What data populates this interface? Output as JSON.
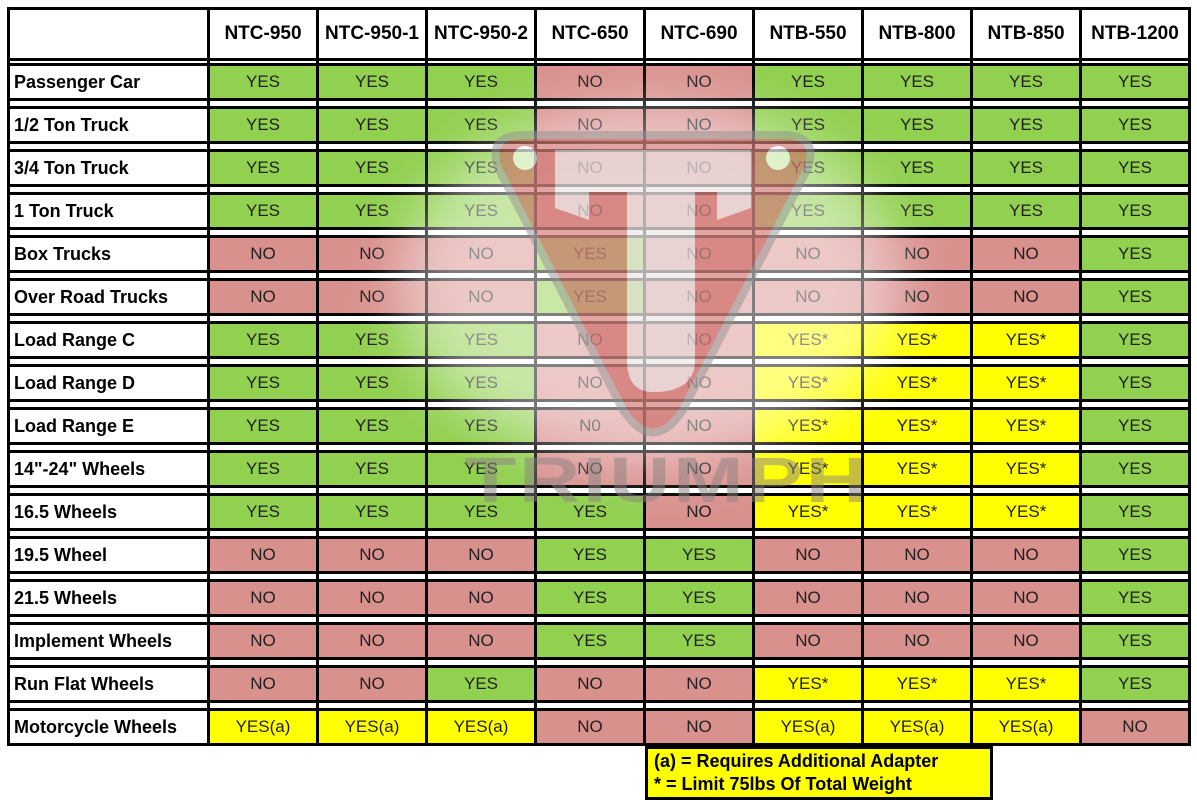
{
  "chart_data": {
    "type": "table",
    "title": "",
    "columns": [
      "NTC-950",
      "NTC-950-1",
      "NTC-950-2",
      "NTC-650",
      "NTC-690",
      "NTB-550",
      "NTB-800",
      "NTB-850",
      "NTB-1200"
    ],
    "rows": [
      {
        "label": "Passenger Car",
        "cells": [
          "YES",
          "YES",
          "YES",
          "NO",
          "NO",
          "YES",
          "YES",
          "YES",
          "YES"
        ]
      },
      {
        "label": "1/2 Ton Truck",
        "cells": [
          "YES",
          "YES",
          "YES",
          "NO",
          "NO",
          "YES",
          "YES",
          "YES",
          "YES"
        ]
      },
      {
        "label": "3/4 Ton Truck",
        "cells": [
          "YES",
          "YES",
          "YES",
          "NO",
          "NO",
          "YES",
          "YES",
          "YES",
          "YES"
        ]
      },
      {
        "label": "1 Ton Truck",
        "cells": [
          "YES",
          "YES",
          "YES",
          "NO",
          "NO",
          "YES",
          "YES",
          "YES",
          "YES"
        ]
      },
      {
        "label": "Box Trucks",
        "cells": [
          "NO",
          "NO",
          "NO",
          "YES",
          "NO",
          "NO",
          "NO",
          "NO",
          "YES"
        ]
      },
      {
        "label": "Over Road Trucks",
        "cells": [
          "NO",
          "NO",
          "NO",
          "YES",
          "NO",
          "NO",
          "NO",
          "NO",
          "YES"
        ]
      },
      {
        "label": "Load Range C",
        "cells": [
          "YES",
          "YES",
          "YES",
          "NO",
          "NO",
          "YES*",
          "YES*",
          "YES*",
          "YES"
        ]
      },
      {
        "label": "Load Range D",
        "cells": [
          "YES",
          "YES",
          "YES",
          "NO",
          "NO",
          "YES*",
          "YES*",
          "YES*",
          "YES"
        ]
      },
      {
        "label": "Load Range E",
        "cells": [
          "YES",
          "YES",
          "YES",
          "N0",
          "NO",
          "YES*",
          "YES*",
          "YES*",
          "YES"
        ]
      },
      {
        "label": "14\"-24\" Wheels",
        "cells": [
          "YES",
          "YES",
          "YES",
          "NO",
          "NO",
          "YES*",
          "YES*",
          "YES*",
          "YES"
        ]
      },
      {
        "label": "16.5 Wheels",
        "cells": [
          "YES",
          "YES",
          "YES",
          "YES",
          "NO",
          "YES*",
          "YES*",
          "YES*",
          "YES"
        ]
      },
      {
        "label": "19.5 Wheel",
        "cells": [
          "NO",
          "NO",
          "NO",
          "YES",
          "YES",
          "NO",
          "NO",
          "NO",
          "YES"
        ]
      },
      {
        "label": "21.5 Wheels",
        "cells": [
          "NO",
          "NO",
          "NO",
          "YES",
          "YES",
          "NO",
          "NO",
          "NO",
          "YES"
        ]
      },
      {
        "label": "Implement Wheels",
        "cells": [
          "NO",
          "NO",
          "NO",
          "YES",
          "YES",
          "NO",
          "NO",
          "NO",
          "YES"
        ]
      },
      {
        "label": "Run Flat Wheels",
        "cells": [
          "NO",
          "NO",
          "YES",
          "NO",
          "NO",
          "YES*",
          "YES*",
          "YES*",
          "YES"
        ]
      },
      {
        "label": "Motorcycle Wheels",
        "cells": [
          "YES(a)",
          "YES(a)",
          "YES(a)",
          "NO",
          "NO",
          "YES(a)",
          "YES(a)",
          "YES(a)",
          "NO"
        ]
      }
    ],
    "legend": [
      "(a) = Requires Additional Adapter",
      "* = Limit 75lbs Of Total Weight"
    ],
    "colors": {
      "yes": "#92d050",
      "no": "#d9918e",
      "conditional": "#ffff00",
      "legend_bg": "#ffff00",
      "border": "#000000"
    },
    "layout_hints": {
      "grid": true,
      "legend_position": "bottom-center"
    }
  },
  "watermark": {
    "text": "TRIUMPH",
    "icon": "triumph-shield-logo",
    "shield_color": "#c24a44"
  }
}
